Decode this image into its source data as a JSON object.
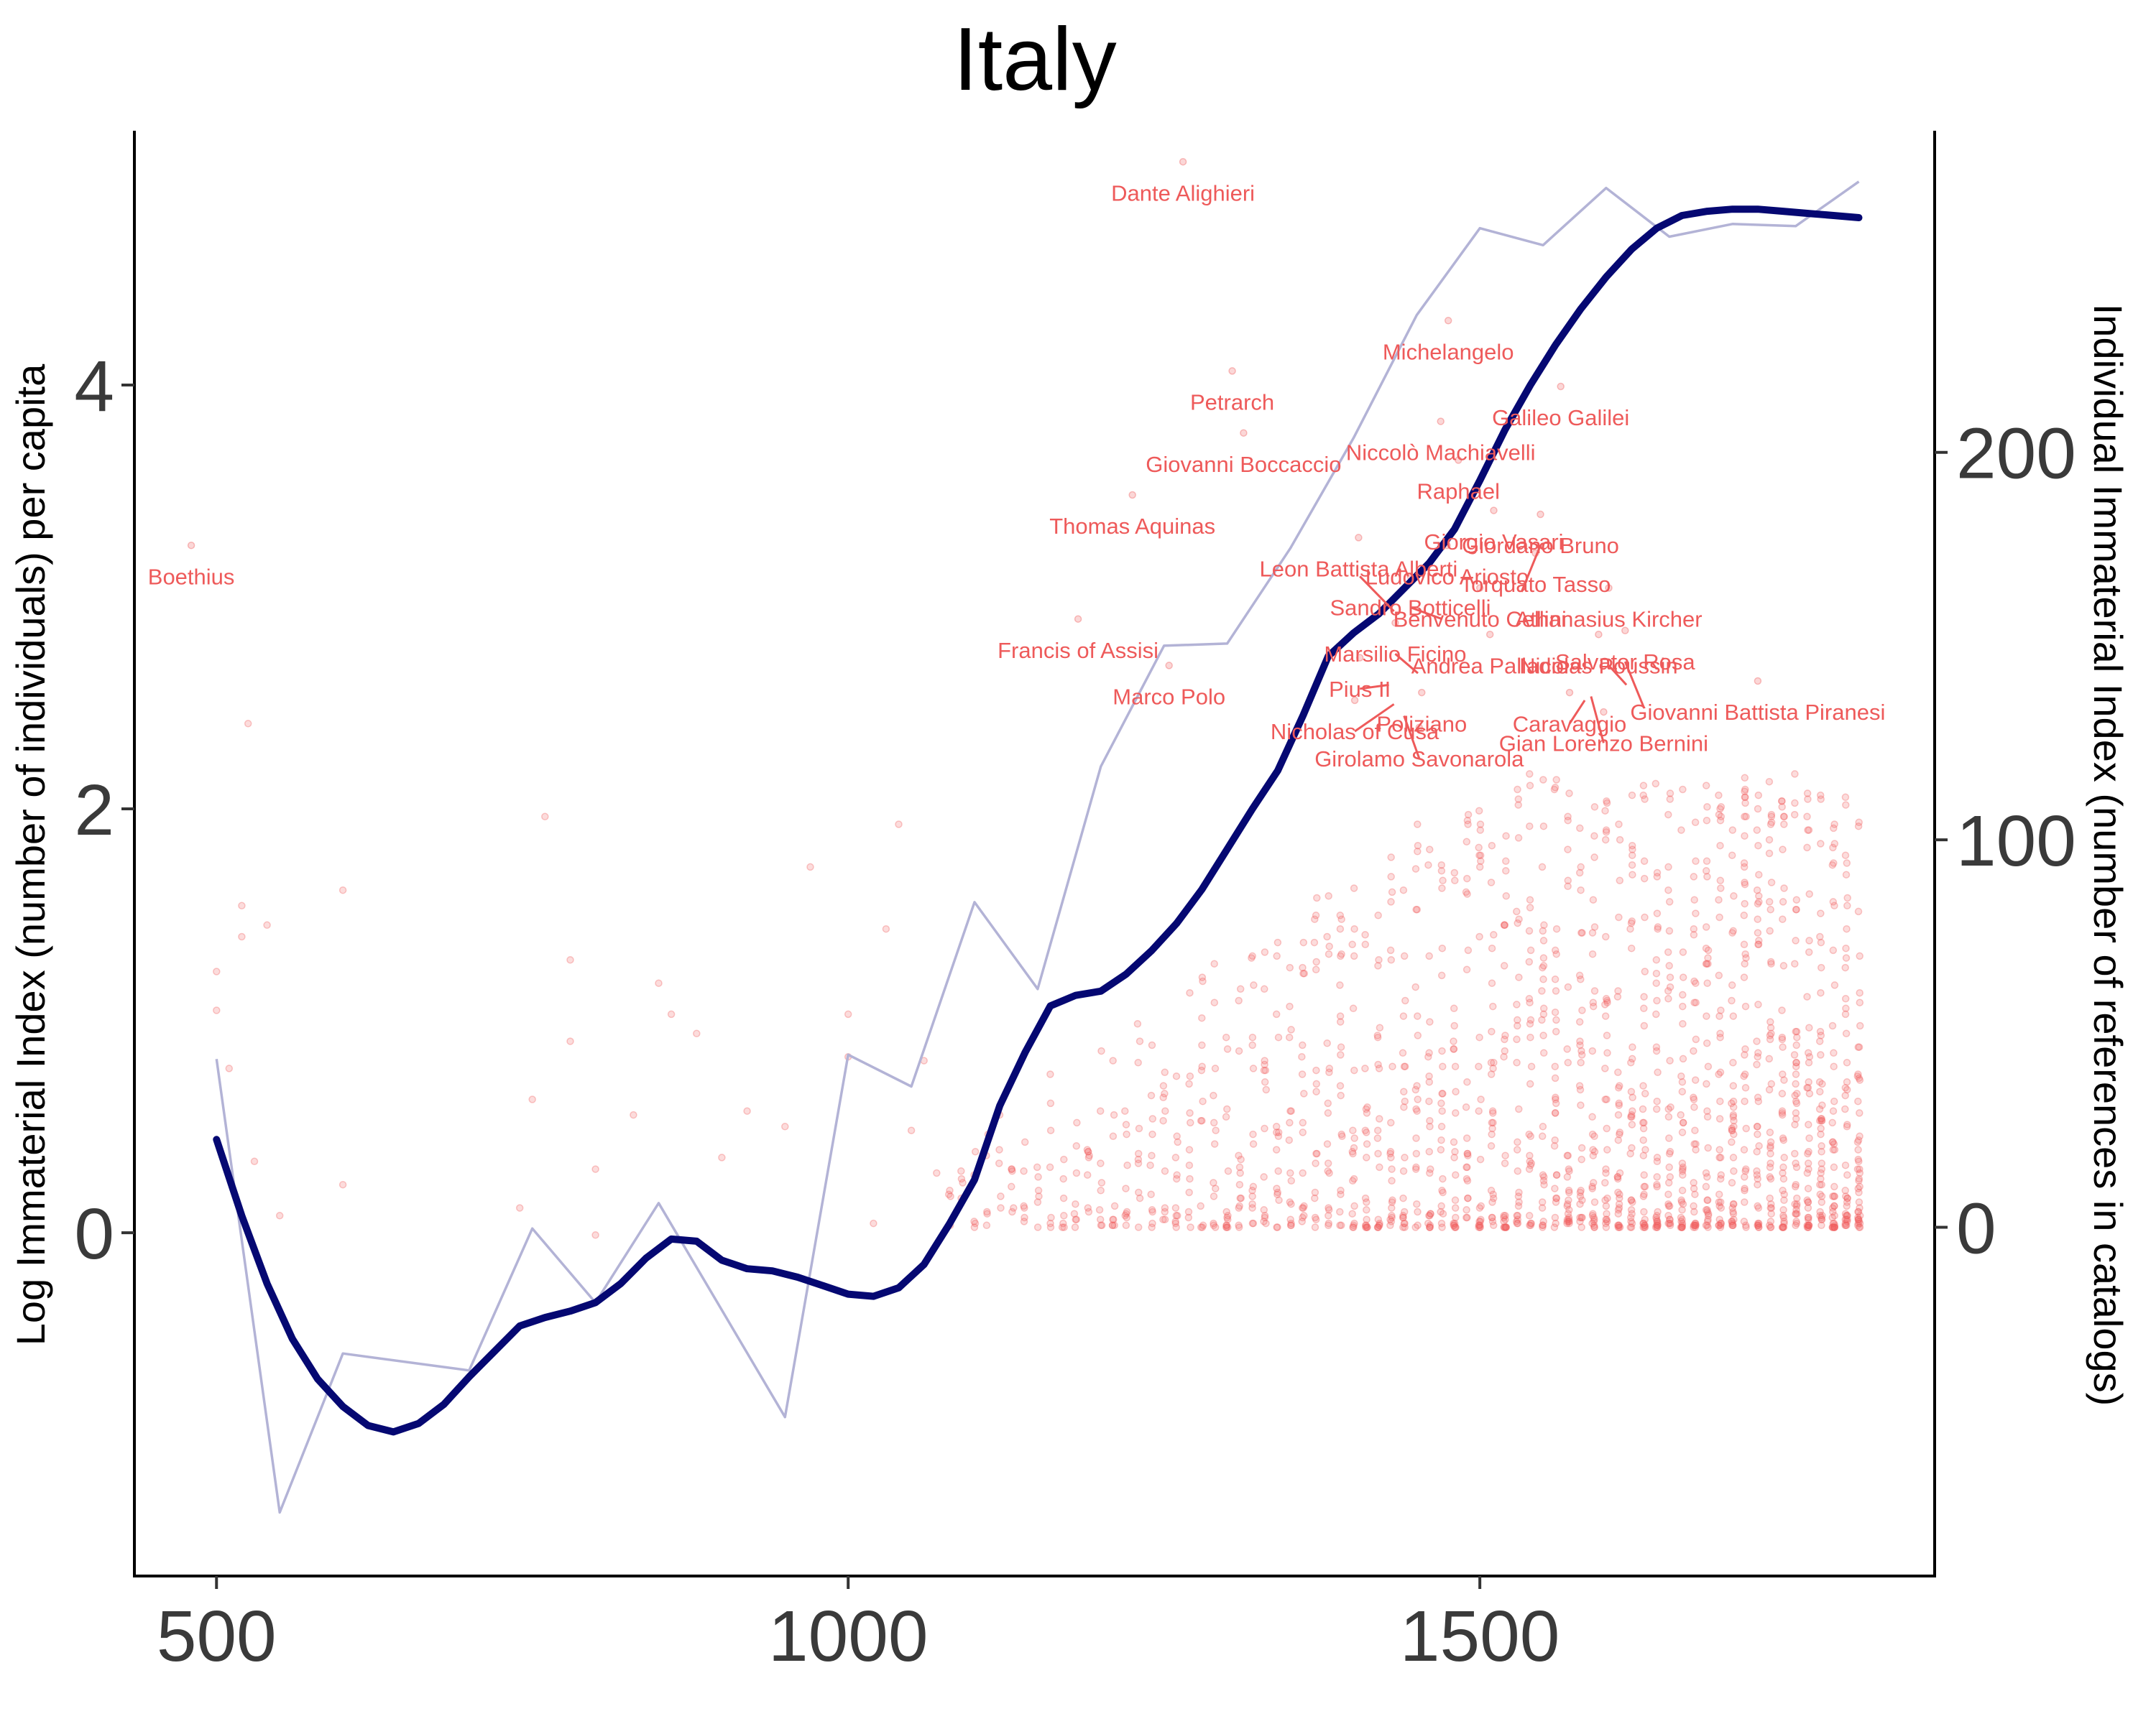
{
  "chart_data": {
    "type": "line",
    "title": "Italy",
    "xlabel": "",
    "ylabel": "Log Immaterial Index (number of individuals) per capita",
    "ylabel_right": "Individual Immaterial Index (number of references in catalogs)",
    "xlim": [
      435,
      1860
    ],
    "ylim": [
      -1.62,
      5.2
    ],
    "ylim_right": [
      -90,
      283
    ],
    "x_ticks": [
      500,
      1000,
      1500
    ],
    "y_ticks": [
      0,
      2,
      4
    ],
    "y_ticks_right": [
      0,
      100,
      200
    ],
    "grid": false,
    "colors": {
      "smooth": "#050872",
      "raw": "#b3b3d6",
      "points": "#f06060",
      "labels": "#ee5a5a"
    },
    "series": [
      {
        "kind": "smoothed",
        "x": [
          500,
          520,
          540,
          560,
          580,
          600,
          620,
          640,
          660,
          680,
          700,
          720,
          740,
          760,
          780,
          800,
          820,
          840,
          860,
          880,
          900,
          920,
          940,
          960,
          980,
          1000,
          1020,
          1040,
          1060,
          1080,
          1100,
          1120,
          1140,
          1160,
          1180,
          1200,
          1220,
          1240,
          1260,
          1280,
          1300,
          1320,
          1340,
          1360,
          1380,
          1400,
          1420,
          1440,
          1460,
          1480,
          1500,
          1520,
          1540,
          1560,
          1580,
          1600,
          1620,
          1640,
          1660,
          1680,
          1700,
          1720,
          1740,
          1760,
          1780,
          1800
        ],
        "values": [
          0.44,
          0.08,
          -0.24,
          -0.5,
          -0.69,
          -0.82,
          -0.91,
          -0.94,
          -0.9,
          -0.81,
          -0.68,
          -0.56,
          -0.44,
          -0.4,
          -0.37,
          -0.33,
          -0.24,
          -0.12,
          -0.03,
          -0.04,
          -0.13,
          -0.17,
          -0.18,
          -0.21,
          -0.25,
          -0.29,
          -0.3,
          -0.26,
          -0.15,
          0.04,
          0.25,
          0.6,
          0.85,
          1.07,
          1.12,
          1.14,
          1.22,
          1.33,
          1.46,
          1.62,
          1.81,
          2.0,
          2.18,
          2.44,
          2.72,
          2.83,
          2.92,
          3.04,
          3.16,
          3.32,
          3.55,
          3.79,
          4.0,
          4.19,
          4.36,
          4.51,
          4.64,
          4.74,
          4.8,
          4.82,
          4.83,
          4.83,
          4.82,
          4.81,
          4.8,
          4.79
        ]
      },
      {
        "kind": "raw",
        "x": [
          500,
          550,
          600,
          700,
          750,
          800,
          850,
          950,
          1000,
          1050,
          1100,
          1150,
          1200,
          1250,
          1300,
          1350,
          1400,
          1450,
          1500,
          1550,
          1600,
          1650,
          1700,
          1750,
          1800
        ],
        "values": [
          0.82,
          -1.32,
          -0.57,
          -0.65,
          0.02,
          -0.33,
          0.14,
          -0.87,
          0.84,
          0.69,
          1.56,
          1.15,
          2.2,
          2.77,
          2.78,
          3.23,
          3.75,
          4.33,
          4.74,
          4.66,
          4.93,
          4.7,
          4.76,
          4.75,
          4.96
        ]
      }
    ],
    "x_smoothed_note": "",
    "labels": [
      {
        "name": "Dante Alighieri",
        "year": 1265,
        "value": 267
      },
      {
        "name": "Boethius",
        "year": 480,
        "value": 168
      },
      {
        "name": "Michelangelo",
        "year": 1475,
        "value": 226
      },
      {
        "name": "Petrarch",
        "year": 1304,
        "value": 213
      },
      {
        "name": "Galileo Galilei",
        "year": 1564,
        "value": 209
      },
      {
        "name": "Giovanni Boccaccio",
        "year": 1313,
        "value": 197
      },
      {
        "name": "Niccolò Machiavelli",
        "year": 1469,
        "value": 200
      },
      {
        "name": "Raphael",
        "year": 1483,
        "value": 190
      },
      {
        "name": "Thomas Aquinas",
        "year": 1225,
        "value": 181
      },
      {
        "name": "Giorgio Vasari",
        "year": 1511,
        "value": 177
      },
      {
        "name": "Giordano Bruno",
        "year": 1548,
        "value": 176
      },
      {
        "name": "Leon Battista Alberti",
        "year": 1404,
        "value": 170
      },
      {
        "name": "Ludovico Ariosto",
        "year": 1474,
        "value": 168
      },
      {
        "name": "Torquato Tasso",
        "year": 1544,
        "value": 166
      },
      {
        "name": "Sandro Botticelli",
        "year": 1445,
        "value": 160
      },
      {
        "name": "Benvenuto Cellini",
        "year": 1500,
        "value": 157
      },
      {
        "name": "Athanasius Kircher",
        "year": 1602,
        "value": 157
      },
      {
        "name": "Francis of Assisi",
        "year": 1182,
        "value": 149
      },
      {
        "name": "Marsilio Ficino",
        "year": 1433,
        "value": 148
      },
      {
        "name": "Andrea Palladio",
        "year": 1508,
        "value": 145
      },
      {
        "name": "Nicolas Poussin",
        "year": 1594,
        "value": 145
      },
      {
        "name": "Salvator Rosa",
        "year": 1615,
        "value": 146
      },
      {
        "name": "Pius II",
        "year": 1405,
        "value": 139
      },
      {
        "name": "Marco Polo",
        "year": 1254,
        "value": 137
      },
      {
        "name": "Giovanni Battista Piranesi",
        "year": 1720,
        "value": 133
      },
      {
        "name": "Caravaggio",
        "year": 1571,
        "value": 130
      },
      {
        "name": "Poliziano",
        "year": 1454,
        "value": 130
      },
      {
        "name": "Nicholas of Cusa",
        "year": 1401,
        "value": 128
      },
      {
        "name": "Gian Lorenzo Bernini",
        "year": 1598,
        "value": 125
      },
      {
        "name": "Girolamo Savonarola",
        "year": 1452,
        "value": 121
      }
    ]
  }
}
